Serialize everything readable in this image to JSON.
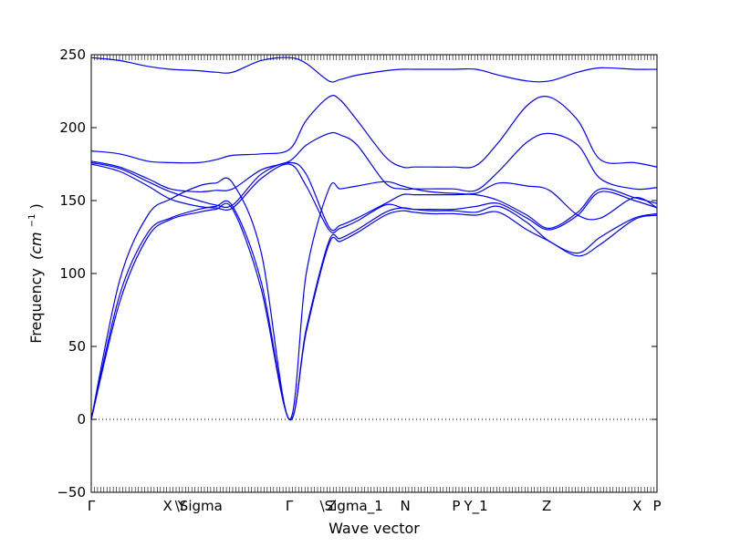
{
  "chart_data": {
    "type": "line",
    "xlabel": "Wave vector",
    "ylabel": "Frequency",
    "ylabel_unit": "(cm",
    "ylabel_unit_exp": "−1",
    "ylabel_unit_close": ")",
    "ylim": [
      -50,
      250
    ],
    "yticks": [
      -50,
      0,
      50,
      100,
      150,
      200,
      250
    ],
    "xlim": [
      0,
      100
    ],
    "xticks": [
      {
        "x": 0,
        "label": "Γ"
      },
      {
        "x": 13.5,
        "label": "X"
      },
      {
        "x": 16,
        "label": "Y"
      },
      {
        "x": 19,
        "label": "\\Sigma"
      },
      {
        "x": 35,
        "label": "Γ"
      },
      {
        "x": 42.5,
        "label": "Z"
      },
      {
        "x": 46,
        "label": "\\Sigma_1"
      },
      {
        "x": 55.5,
        "label": "N"
      },
      {
        "x": 64.5,
        "label": "P"
      },
      {
        "x": 68,
        "label": "Y_1"
      },
      {
        "x": 80.5,
        "label": "Z"
      },
      {
        "x": 96.5,
        "label": "X"
      },
      {
        "x": 100,
        "label": "P"
      }
    ],
    "zero_line": true,
    "grid": false,
    "series_color": "#0000ff",
    "series": [
      {
        "x": [
          0,
          5,
          10,
          14,
          19,
          22,
          25,
          30,
          35,
          38,
          42,
          44,
          47,
          52,
          55,
          57,
          60,
          64,
          68,
          72,
          77,
          81,
          86,
          90,
          96,
          100
        ],
        "values": [
          0,
          80,
          125,
          137,
          142,
          144,
          144,
          90,
          0,
          60,
          120,
          122,
          128,
          140,
          143,
          142,
          141,
          141,
          140,
          142,
          130,
          122,
          112,
          120,
          137,
          140
        ]
      },
      {
        "x": [
          0,
          5,
          10,
          14,
          19,
          22,
          25,
          30,
          35,
          38,
          42,
          44,
          47,
          52,
          55,
          57,
          60,
          64,
          68,
          72,
          77,
          81,
          86,
          90,
          96,
          100
        ],
        "values": [
          0,
          85,
          128,
          138,
          144,
          146,
          146,
          95,
          0,
          62,
          122,
          124,
          130,
          142,
          145,
          144,
          143,
          143,
          142,
          146,
          135,
          122,
          114,
          125,
          138,
          141
        ]
      },
      {
        "x": [
          0,
          5,
          10,
          14,
          19,
          22,
          25,
          30,
          35,
          38,
          42,
          44,
          47,
          52,
          55,
          57,
          60,
          64,
          68,
          72,
          77,
          81,
          86,
          90,
          96,
          100
        ],
        "values": [
          0,
          95,
          140,
          151,
          160,
          162,
          162,
          115,
          0,
          100,
          158,
          158,
          160,
          163,
          160,
          158,
          156,
          155,
          155,
          162,
          160,
          157,
          140,
          138,
          152,
          145
        ]
      },
      {
        "x": [
          0,
          5,
          10,
          14,
          19,
          22,
          25,
          30,
          35,
          38,
          42,
          44,
          47,
          52,
          55,
          57,
          60,
          64,
          68,
          72,
          77,
          81,
          86,
          90,
          96,
          100
        ],
        "values": [
          175,
          170,
          160,
          151,
          146,
          145,
          145,
          165,
          175,
          160,
          130,
          131,
          136,
          147,
          145,
          144,
          144,
          144,
          146,
          148,
          138,
          130,
          140,
          156,
          150,
          145
        ]
      },
      {
        "x": [
          0,
          5,
          10,
          14,
          19,
          22,
          25,
          30,
          35,
          38,
          42,
          44,
          47,
          52,
          55,
          57,
          60,
          64,
          68,
          72,
          77,
          81,
          86,
          90,
          96,
          100
        ],
        "values": [
          176,
          172,
          163,
          156,
          150,
          147,
          147,
          168,
          176,
          168,
          132,
          133,
          138,
          148,
          154,
          154,
          154,
          154,
          154,
          150,
          140,
          131,
          142,
          158,
          152,
          148
        ]
      },
      {
        "x": [
          0,
          5,
          10,
          14,
          19,
          22,
          25,
          30,
          35,
          38,
          42,
          44,
          47,
          52,
          55,
          57,
          60,
          64,
          68,
          72,
          77,
          81,
          86,
          90,
          96,
          100
        ],
        "values": [
          177,
          173,
          165,
          158,
          156,
          157,
          158,
          171,
          177,
          188,
          196,
          195,
          188,
          162,
          158,
          158,
          158,
          158,
          157,
          170,
          190,
          196,
          188,
          165,
          158,
          159
        ]
      },
      {
        "x": [
          0,
          5,
          10,
          14,
          19,
          22,
          25,
          30,
          35,
          38,
          42,
          44,
          47,
          52,
          55,
          57,
          60,
          64,
          68,
          72,
          77,
          81,
          86,
          90,
          96,
          100
        ],
        "values": [
          184,
          182,
          177,
          176,
          176,
          178,
          181,
          182,
          185,
          205,
          221,
          219,
          205,
          180,
          173,
          173,
          173,
          173,
          174,
          190,
          215,
          221,
          205,
          178,
          176,
          173
        ]
      },
      {
        "x": [
          0,
          5,
          10,
          14,
          19,
          22,
          25,
          30,
          35,
          38,
          42,
          44,
          47,
          52,
          55,
          57,
          60,
          64,
          68,
          72,
          77,
          81,
          86,
          90,
          96,
          100
        ],
        "values": [
          248,
          246,
          242,
          240,
          239,
          238,
          238,
          246,
          248,
          244,
          232,
          233,
          236,
          239,
          240,
          240,
          240,
          240,
          240,
          236,
          232,
          232,
          238,
          241,
          240,
          240
        ]
      }
    ]
  }
}
